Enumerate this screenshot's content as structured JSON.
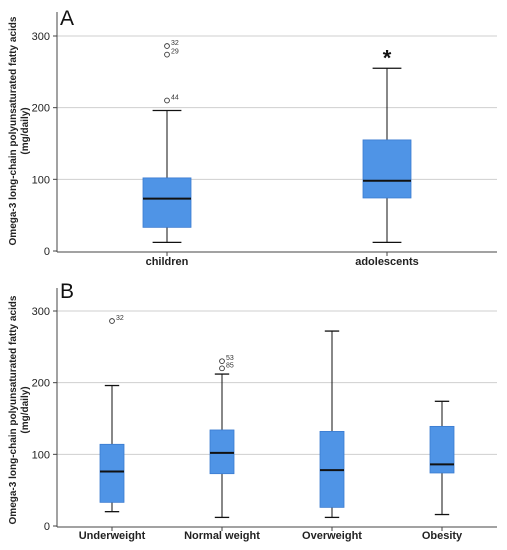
{
  "figure": {
    "background": "#ffffff",
    "box_color": "#4f94e6",
    "grid_color": "#cfcfcf"
  },
  "chart_data": [
    {
      "panel_label": "A",
      "type": "box",
      "ylabel_line1": "Omega-3 long-chain polyunsaturated fatty acids",
      "ylabel_line2": "(mg/daily)",
      "ylim": [
        0,
        320
      ],
      "yticks": [
        0,
        100,
        200,
        300
      ],
      "grid": true,
      "categories": [
        "children",
        "adolescents"
      ],
      "boxes": [
        {
          "category": "children",
          "min": 12,
          "q1": 33,
          "median": 73,
          "q3": 102,
          "max": 196,
          "outliers": [
            {
              "value": 286,
              "label": "32"
            },
            {
              "value": 274,
              "label": "29"
            },
            {
              "value": 210,
              "label": "44"
            }
          ]
        },
        {
          "category": "adolescents",
          "min": 12,
          "q1": 74,
          "median": 98,
          "q3": 155,
          "max": 255,
          "outliers": []
        }
      ],
      "significance": {
        "category": "adolescents",
        "marker": "*"
      }
    },
    {
      "panel_label": "B",
      "type": "box",
      "ylabel_line1": "Omega-3 long-chain polyunsaturated fatty acids",
      "ylabel_line2": "(mg/daily)",
      "ylim": [
        0,
        320
      ],
      "yticks": [
        0,
        100,
        200,
        300
      ],
      "grid": true,
      "categories": [
        "Underweight",
        "Normal weight",
        "Overweight",
        "Obesity"
      ],
      "boxes": [
        {
          "category": "Underweight",
          "min": 20,
          "q1": 33,
          "median": 76,
          "q3": 114,
          "max": 196,
          "outliers": [
            {
              "value": 286,
              "label": "32"
            }
          ]
        },
        {
          "category": "Normal weight",
          "min": 12,
          "q1": 73,
          "median": 102,
          "q3": 134,
          "max": 212,
          "outliers": [
            {
              "value": 230,
              "label": "53"
            },
            {
              "value": 220,
              "label": "85"
            }
          ]
        },
        {
          "category": "Overweight",
          "min": 12,
          "q1": 26,
          "median": 78,
          "q3": 132,
          "max": 272,
          "outliers": []
        },
        {
          "category": "Obesity",
          "min": 16,
          "q1": 74,
          "median": 86,
          "q3": 139,
          "max": 174,
          "outliers": []
        }
      ]
    }
  ]
}
